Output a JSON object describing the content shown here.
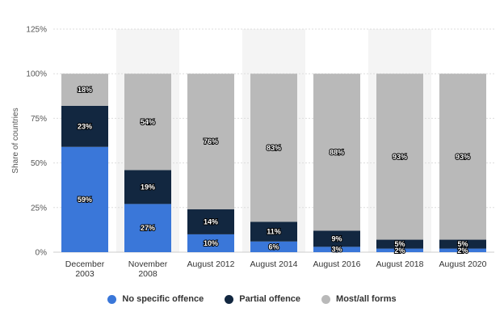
{
  "chart_data": {
    "type": "bar",
    "stacked": true,
    "categories": [
      "December 2003",
      "November 2008",
      "August 2012",
      "August 2014",
      "August 2016",
      "August 2018",
      "August 2020"
    ],
    "category_lines": [
      [
        "December",
        "2003"
      ],
      [
        "November",
        "2008"
      ],
      [
        "August 2012"
      ],
      [
        "August 2014"
      ],
      [
        "August 2016"
      ],
      [
        "August 2018"
      ],
      [
        "August 2020"
      ]
    ],
    "series": [
      {
        "name": "No specific offence",
        "color": "#3a77d9",
        "values": [
          59,
          27,
          10,
          6,
          3,
          2,
          2
        ],
        "labels": [
          "59%",
          "27%",
          "10%",
          "6%",
          "3%",
          "2%",
          "2%"
        ]
      },
      {
        "name": "Partial offence",
        "color": "#122740",
        "values": [
          23,
          19,
          14,
          11,
          9,
          5,
          5
        ],
        "labels": [
          "23%",
          "19%",
          "14%",
          "11%",
          "9%",
          "5%",
          "5%"
        ]
      },
      {
        "name": "Most/all forms",
        "color": "#b9b9b9",
        "values": [
          18,
          54,
          76,
          83,
          88,
          93,
          93
        ],
        "labels": [
          "18%",
          "54%",
          "76%",
          "83%",
          "88%",
          "93%",
          "93%"
        ]
      }
    ],
    "ylabel": "Share of countries",
    "ylim": [
      0,
      125
    ],
    "yticks": [
      0,
      25,
      50,
      75,
      100,
      125
    ],
    "ytick_labels": [
      "0%",
      "25%",
      "50%",
      "75%",
      "100%",
      "125%"
    ],
    "grid": true,
    "legend_position": "bottom"
  },
  "colors": {
    "grid": "#dddddd",
    "band": "#f4f4f4",
    "axis": "#cccccc"
  }
}
